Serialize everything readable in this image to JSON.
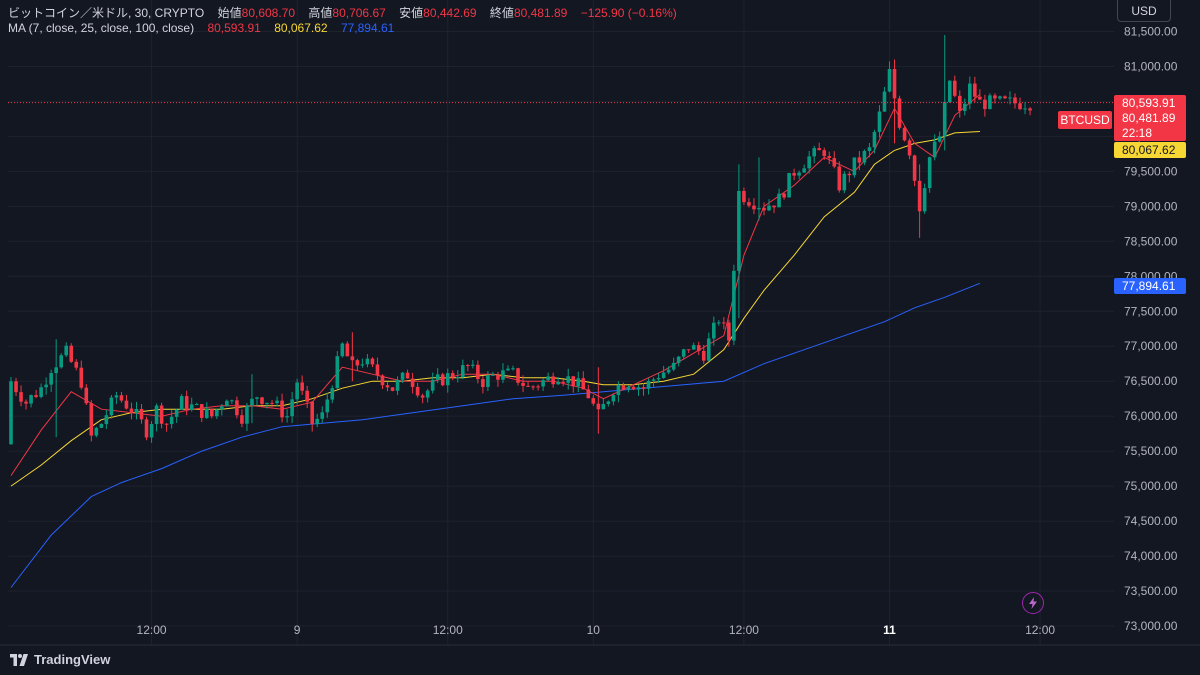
{
  "legend": {
    "symbol_line": "ビットコイン／米ドル, 30, CRYPTO",
    "open_label": "始値",
    "open_value": "80,608.70",
    "high_label": "高値",
    "high_value": "80,706.67",
    "low_label": "安値",
    "low_value": "80,442.69",
    "close_label": "終値",
    "close_value": "80,481.89",
    "change": "−125.90 (−0.16%)",
    "ma_label": "MA (7, close, 25, close, 100, close)",
    "ma7_value": "80,593.91",
    "ma25_value": "80,067.62",
    "ma100_value": "77,894.61"
  },
  "currency": "USD",
  "brand": "TradingView",
  "price_tags": {
    "symbol": "BTCUSD",
    "ma7": "80,593.91",
    "last": "80,481.89",
    "countdown": "22:18",
    "ma25": "80,067.62",
    "ma100": "77,894.61"
  },
  "colors": {
    "background": "#131722",
    "up": "#089981",
    "down": "#f23645",
    "ma7": "#f23645",
    "ma25": "#f7d733",
    "ma100": "#2962ff"
  },
  "icons": [
    "tradingview-logo-icon",
    "flash-icon"
  ],
  "chart_data": {
    "type": "candlestick",
    "y_ticks": [
      73000,
      73500,
      74000,
      74500,
      75000,
      75500,
      76000,
      76500,
      77000,
      77500,
      78000,
      78500,
      79000,
      79500,
      80000,
      80500,
      81000,
      81500
    ],
    "y_tick_labels": [
      "73,000.00",
      "73,500.00",
      "74,000.00",
      "74,500.00",
      "75,000.00",
      "75,500.00",
      "76,000.00",
      "76,500.00",
      "77,000.00",
      "77,500.00",
      "78,000.00",
      "78,500.00",
      "79,000.00",
      "79,500.00",
      "80,000.00",
      "80,500.00",
      "81,000.00",
      "81,500.00"
    ],
    "ylim": [
      72800,
      81950
    ],
    "x_ticks": [
      {
        "bar": 28,
        "label": "12:00",
        "bold": false
      },
      {
        "bar": 57,
        "label": "9",
        "bold": false
      },
      {
        "bar": 87,
        "label": "12:00",
        "bold": false
      },
      {
        "bar": 116,
        "label": "10",
        "bold": false
      },
      {
        "bar": 146,
        "label": "12:00",
        "bold": false
      },
      {
        "bar": 175,
        "label": "11",
        "bold": true
      },
      {
        "bar": 205,
        "label": "12:00",
        "bold": false
      }
    ],
    "bar_count": 204,
    "anchors": [
      [
        0,
        75600,
        76500
      ],
      [
        3,
        76100,
        76200
      ],
      [
        6,
        76300,
        76400
      ],
      [
        8,
        76600,
        76700
      ],
      [
        11,
        76800,
        76900
      ],
      [
        14,
        76300,
        76500
      ],
      [
        16,
        75800,
        75700
      ],
      [
        18,
        75800,
        75900
      ],
      [
        21,
        76100,
        76300
      ],
      [
        24,
        76400,
        76100
      ],
      [
        27,
        76000,
        75800
      ],
      [
        29,
        75900,
        76100
      ],
      [
        31,
        75800,
        75900
      ],
      [
        34,
        76000,
        76200
      ],
      [
        37,
        76100,
        76100
      ],
      [
        40,
        76200,
        76000
      ],
      [
        43,
        76000,
        76300
      ],
      [
        46,
        76200,
        76000
      ],
      [
        49,
        76100,
        76300
      ],
      [
        52,
        76000,
        76200
      ],
      [
        55,
        76200,
        76000
      ],
      [
        57,
        76000,
        76500
      ],
      [
        60,
        76300,
        75900
      ],
      [
        62,
        76100,
        76000
      ],
      [
        64,
        75900,
        76500
      ],
      [
        66,
        76600,
        77000
      ],
      [
        68,
        77000,
        76700
      ],
      [
        70,
        76600,
        76800
      ],
      [
        73,
        76700,
        76600
      ],
      [
        76,
        76500,
        76400
      ],
      [
        79,
        76500,
        76600
      ],
      [
        82,
        76400,
        76300
      ],
      [
        85,
        76400,
        76500
      ],
      [
        88,
        76500,
        76600
      ],
      [
        91,
        76600,
        76700
      ],
      [
        94,
        76700,
        76500
      ],
      [
        97,
        76500,
        76600
      ],
      [
        100,
        76500,
        76600
      ],
      [
        103,
        76500,
        76400
      ],
      [
        106,
        76400,
        76500
      ],
      [
        109,
        76500,
        76600
      ],
      [
        112,
        76400,
        76500
      ],
      [
        115,
        76400,
        76300
      ],
      [
        117,
        76200,
        76000
      ],
      [
        120,
        76200,
        76400
      ],
      [
        123,
        76300,
        76500
      ],
      [
        126,
        76500,
        76400
      ],
      [
        129,
        76400,
        76600
      ],
      [
        132,
        76600,
        76700
      ],
      [
        135,
        76800,
        77000
      ],
      [
        138,
        77000,
        76900
      ],
      [
        141,
        77100,
        77400
      ],
      [
        143,
        77300,
        77100
      ],
      [
        145,
        77600,
        79200
      ],
      [
        147,
        79500,
        79100
      ],
      [
        150,
        78900,
        79000
      ],
      [
        153,
        78900,
        79100
      ],
      [
        156,
        79100,
        79500
      ],
      [
        159,
        79400,
        79700
      ],
      [
        162,
        79500,
        79800
      ],
      [
        165,
        79700,
        79300
      ],
      [
        168,
        79400,
        79600
      ],
      [
        171,
        79500,
        79800
      ],
      [
        173,
        79800,
        80300
      ],
      [
        175,
        80400,
        80900
      ],
      [
        177,
        80700,
        80200
      ],
      [
        179,
        80300,
        79800
      ],
      [
        181,
        79800,
        79000
      ],
      [
        183,
        79100,
        79700
      ],
      [
        185,
        79600,
        80000
      ],
      [
        187,
        80100,
        80800
      ],
      [
        189,
        80700,
        80300
      ],
      [
        191,
        80500,
        80700
      ],
      [
        193,
        80600,
        80480
      ]
    ],
    "highlights": [
      [
        9,
        77100,
        75700
      ],
      [
        48,
        76600,
        75900
      ],
      [
        68,
        77200,
        76500
      ],
      [
        117,
        76700,
        75750
      ],
      [
        145,
        79600,
        77400
      ],
      [
        149,
        79700,
        78800
      ],
      [
        176,
        81100,
        79900
      ],
      [
        181,
        79600,
        78550
      ],
      [
        186,
        81450,
        79800
      ]
    ],
    "ma7": [
      [
        0,
        75150
      ],
      [
        6,
        75800
      ],
      [
        12,
        76350
      ],
      [
        18,
        76100
      ],
      [
        24,
        76050
      ],
      [
        30,
        76000
      ],
      [
        36,
        76100
      ],
      [
        42,
        76150
      ],
      [
        48,
        76150
      ],
      [
        54,
        76100
      ],
      [
        60,
        76200
      ],
      [
        66,
        76700
      ],
      [
        72,
        76600
      ],
      [
        78,
        76500
      ],
      [
        84,
        76500
      ],
      [
        90,
        76600
      ],
      [
        96,
        76600
      ],
      [
        102,
        76500
      ],
      [
        108,
        76500
      ],
      [
        114,
        76400
      ],
      [
        118,
        76250
      ],
      [
        124,
        76450
      ],
      [
        130,
        76650
      ],
      [
        136,
        76900
      ],
      [
        142,
        77150
      ],
      [
        146,
        78300
      ],
      [
        150,
        79000
      ],
      [
        156,
        79300
      ],
      [
        162,
        79700
      ],
      [
        168,
        79500
      ],
      [
        172,
        79800
      ],
      [
        176,
        80400
      ],
      [
        180,
        79900
      ],
      [
        184,
        79700
      ],
      [
        188,
        80300
      ],
      [
        193,
        80600
      ]
    ],
    "ma25": [
      [
        0,
        75000
      ],
      [
        6,
        75300
      ],
      [
        12,
        75650
      ],
      [
        18,
        75950
      ],
      [
        24,
        76050
      ],
      [
        30,
        76100
      ],
      [
        36,
        76100
      ],
      [
        42,
        76100
      ],
      [
        48,
        76150
      ],
      [
        54,
        76150
      ],
      [
        60,
        76250
      ],
      [
        66,
        76400
      ],
      [
        72,
        76500
      ],
      [
        78,
        76500
      ],
      [
        84,
        76550
      ],
      [
        90,
        76550
      ],
      [
        96,
        76600
      ],
      [
        102,
        76550
      ],
      [
        108,
        76550
      ],
      [
        114,
        76500
      ],
      [
        118,
        76450
      ],
      [
        124,
        76450
      ],
      [
        130,
        76500
      ],
      [
        136,
        76600
      ],
      [
        142,
        76950
      ],
      [
        146,
        77400
      ],
      [
        150,
        77800
      ],
      [
        156,
        78300
      ],
      [
        162,
        78850
      ],
      [
        168,
        79200
      ],
      [
        172,
        79600
      ],
      [
        176,
        79800
      ],
      [
        180,
        79900
      ],
      [
        184,
        79950
      ],
      [
        188,
        80050
      ],
      [
        193,
        80070
      ]
    ],
    "ma100": [
      [
        0,
        73550
      ],
      [
        8,
        74300
      ],
      [
        16,
        74850
      ],
      [
        22,
        75050
      ],
      [
        30,
        75250
      ],
      [
        38,
        75500
      ],
      [
        46,
        75700
      ],
      [
        54,
        75850
      ],
      [
        62,
        75900
      ],
      [
        70,
        75950
      ],
      [
        80,
        76050
      ],
      [
        90,
        76150
      ],
      [
        100,
        76250
      ],
      [
        110,
        76300
      ],
      [
        118,
        76350
      ],
      [
        126,
        76400
      ],
      [
        134,
        76450
      ],
      [
        142,
        76500
      ],
      [
        150,
        76750
      ],
      [
        158,
        76950
      ],
      [
        166,
        77150
      ],
      [
        174,
        77350
      ],
      [
        180,
        77550
      ],
      [
        186,
        77700
      ],
      [
        193,
        77900
      ]
    ]
  }
}
